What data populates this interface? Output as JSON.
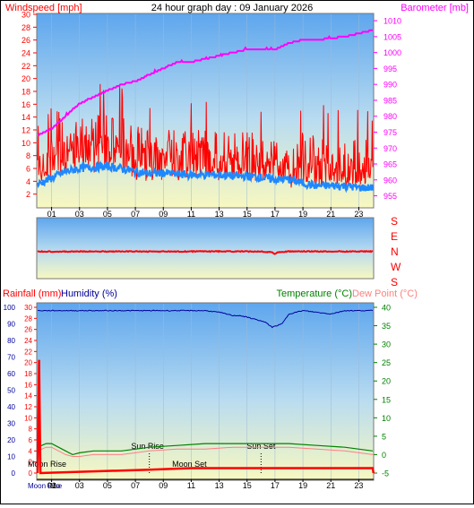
{
  "title": "24 hour graph day : 09 January 2026",
  "colors": {
    "red": "#ff0000",
    "magenta": "#ff00ff",
    "blue": "#1e88ff",
    "navy": "#000099",
    "green": "#008000",
    "pink": "#ff8080",
    "black": "#000000"
  },
  "chart_data": [
    {
      "type": "line",
      "labels": {
        "left": "Windspeed [mph]",
        "right": "Barometer [mb]"
      },
      "x_ticks": [
        "01",
        "03",
        "05",
        "07",
        "09",
        "11",
        "13",
        "15",
        "17",
        "19",
        "21",
        "23"
      ],
      "y_left_ticks": [
        2,
        4,
        6,
        8,
        10,
        12,
        14,
        16,
        18,
        20,
        22,
        24,
        26,
        28,
        30
      ],
      "ylim_left": [
        0,
        30
      ],
      "y_right_ticks": [
        955,
        960,
        965,
        970,
        975,
        980,
        985,
        990,
        995,
        1000,
        1005,
        1010
      ],
      "ylim_right": [
        951.5,
        1012
      ],
      "series": [
        {
          "name": "Windspeed [mph]",
          "color": "red",
          "x": [
            0,
            1,
            2,
            3,
            4,
            5,
            6,
            7,
            8,
            9,
            10,
            11,
            12,
            13,
            14,
            15,
            16,
            17,
            18,
            19,
            20,
            21,
            22,
            23,
            24
          ],
          "min": [
            4,
            4,
            5,
            5,
            5,
            5,
            5,
            4,
            4,
            4,
            4,
            4,
            4,
            4,
            4,
            4,
            4,
            4,
            3,
            3,
            3,
            3,
            3,
            3,
            3
          ],
          "max": [
            13,
            16,
            14,
            14,
            14,
            15,
            14,
            13,
            12,
            12,
            12,
            12,
            12,
            12,
            12,
            12,
            11,
            11,
            10,
            12,
            11,
            11,
            10,
            12,
            10
          ],
          "avg": [
            7,
            8,
            9,
            9,
            9,
            9,
            9,
            8,
            8,
            8,
            8,
            8,
            8,
            7,
            7,
            7,
            7,
            7,
            6,
            6,
            6,
            6,
            6,
            6,
            6
          ]
        },
        {
          "name": "Gust",
          "color": "blue",
          "x": [
            0,
            1,
            2,
            3,
            4,
            5,
            6,
            7,
            8,
            9,
            10,
            11,
            12,
            13,
            14,
            15,
            16,
            17,
            18,
            19,
            20,
            21,
            22,
            23,
            24
          ],
          "values": [
            3.5,
            4.5,
            5.5,
            6,
            6.2,
            6.3,
            6,
            5.5,
            5.2,
            5.3,
            5.1,
            5,
            5,
            5,
            4.8,
            4.8,
            4.6,
            4.3,
            4.3,
            3.7,
            3.3,
            3.3,
            3.3,
            3,
            3
          ]
        },
        {
          "name": "Barometer [mb]",
          "color": "magenta",
          "axis": "right",
          "x": [
            0,
            1,
            2,
            3,
            4,
            5,
            6,
            7,
            8,
            9,
            10,
            11,
            12,
            13,
            14,
            15,
            16,
            17,
            18,
            19,
            20,
            21,
            22,
            23,
            24
          ],
          "values": [
            974,
            976,
            980,
            984,
            986,
            988,
            990,
            991,
            993,
            995,
            997,
            997,
            998,
            999,
            1000,
            1001,
            1001,
            1001,
            1003,
            1004,
            1004,
            1004.5,
            1005,
            1006,
            1007
          ]
        }
      ]
    },
    {
      "type": "line",
      "labels": {
        "compass": [
          "S",
          "E",
          "N",
          "W",
          "S"
        ]
      },
      "series": [
        {
          "name": "Wind Direction",
          "color": "red",
          "x": [
            0,
            2,
            4,
            6,
            8,
            10,
            12,
            14,
            16,
            16.8,
            17,
            17.2,
            18,
            20,
            22,
            24
          ],
          "values": [
            200,
            201,
            200,
            200,
            200,
            201,
            199,
            200,
            200,
            205,
            215,
            205,
            200,
            200,
            200,
            200
          ]
        }
      ]
    },
    {
      "type": "line",
      "labels": {
        "rain": "Rainfall (mm)",
        "humidity": "Humidity (%)",
        "temperature": "Temperature (°C)",
        "dewpoint": "Dew Point (°C)"
      },
      "x_ticks": [
        "01",
        "03",
        "05",
        "07",
        "09",
        "11",
        "13",
        "15",
        "17",
        "19",
        "21",
        "23"
      ],
      "y_rain_ticks": [
        0,
        2,
        4,
        6,
        8,
        10,
        12,
        14,
        16,
        18,
        20,
        22,
        24,
        26,
        28,
        30
      ],
      "y_humidity_ticks": [
        0,
        10,
        20,
        30,
        40,
        50,
        60,
        70,
        80,
        90,
        100
      ],
      "y_temp_ticks": [
        -5,
        0,
        5,
        10,
        15,
        20,
        25,
        30,
        35,
        40
      ],
      "ylim_rain": [
        0,
        30
      ],
      "ylim_humidity": [
        0,
        100
      ],
      "ylim_temp": [
        -5,
        40
      ],
      "series": [
        {
          "name": "Humidity (%)",
          "color": "navy",
          "x": [
            0,
            2,
            4,
            6,
            8,
            10,
            12,
            13,
            14,
            14.5,
            15.5,
            16.3,
            16.8,
            17.5,
            18,
            19,
            21,
            22,
            24
          ],
          "values": [
            98,
            98,
            98,
            98,
            98,
            98,
            98,
            97,
            95,
            95,
            93,
            91,
            88,
            90,
            96,
            98,
            96,
            98,
            98
          ]
        },
        {
          "name": "Temperature (°C)",
          "color": "green",
          "x": [
            0,
            0.6,
            1,
            2,
            2.5,
            3,
            4,
            6,
            7,
            8,
            10,
            12,
            14,
            16,
            18,
            20,
            22,
            24
          ],
          "values": [
            2,
            3,
            3,
            1,
            0,
            0.5,
            1,
            1,
            1.5,
            2,
            2.5,
            3,
            3,
            3,
            3,
            2.5,
            2,
            1
          ]
        },
        {
          "name": "Dew Point (°C)",
          "color": "pink",
          "x": [
            0,
            0.6,
            1,
            2,
            2.5,
            3,
            4,
            6,
            7,
            8,
            10,
            12,
            14,
            16,
            18,
            20,
            22,
            24
          ],
          "values": [
            1,
            2,
            2,
            0,
            -0.5,
            -0.5,
            0,
            0,
            0.5,
            1,
            1.5,
            1.5,
            2,
            2,
            2,
            1.5,
            1,
            0
          ]
        },
        {
          "name": "Rainfall (mm)",
          "color": "red",
          "x": [
            0,
            0.1,
            0.2,
            4,
            8,
            11,
            24,
            24.05
          ],
          "values": [
            0,
            20.5,
            0,
            0.3,
            0.6,
            0.9,
            0.9,
            0
          ]
        }
      ],
      "events": [
        {
          "label": "Sun Rise",
          "x": 8
        },
        {
          "label": "Sun Set",
          "x": 16
        },
        {
          "label": "Moon Set",
          "x": 11
        },
        {
          "label": "Moon Rise",
          "x": 0.2
        }
      ],
      "bottom_labels": [
        "Moon Rise",
        "Mo"
      ]
    }
  ]
}
